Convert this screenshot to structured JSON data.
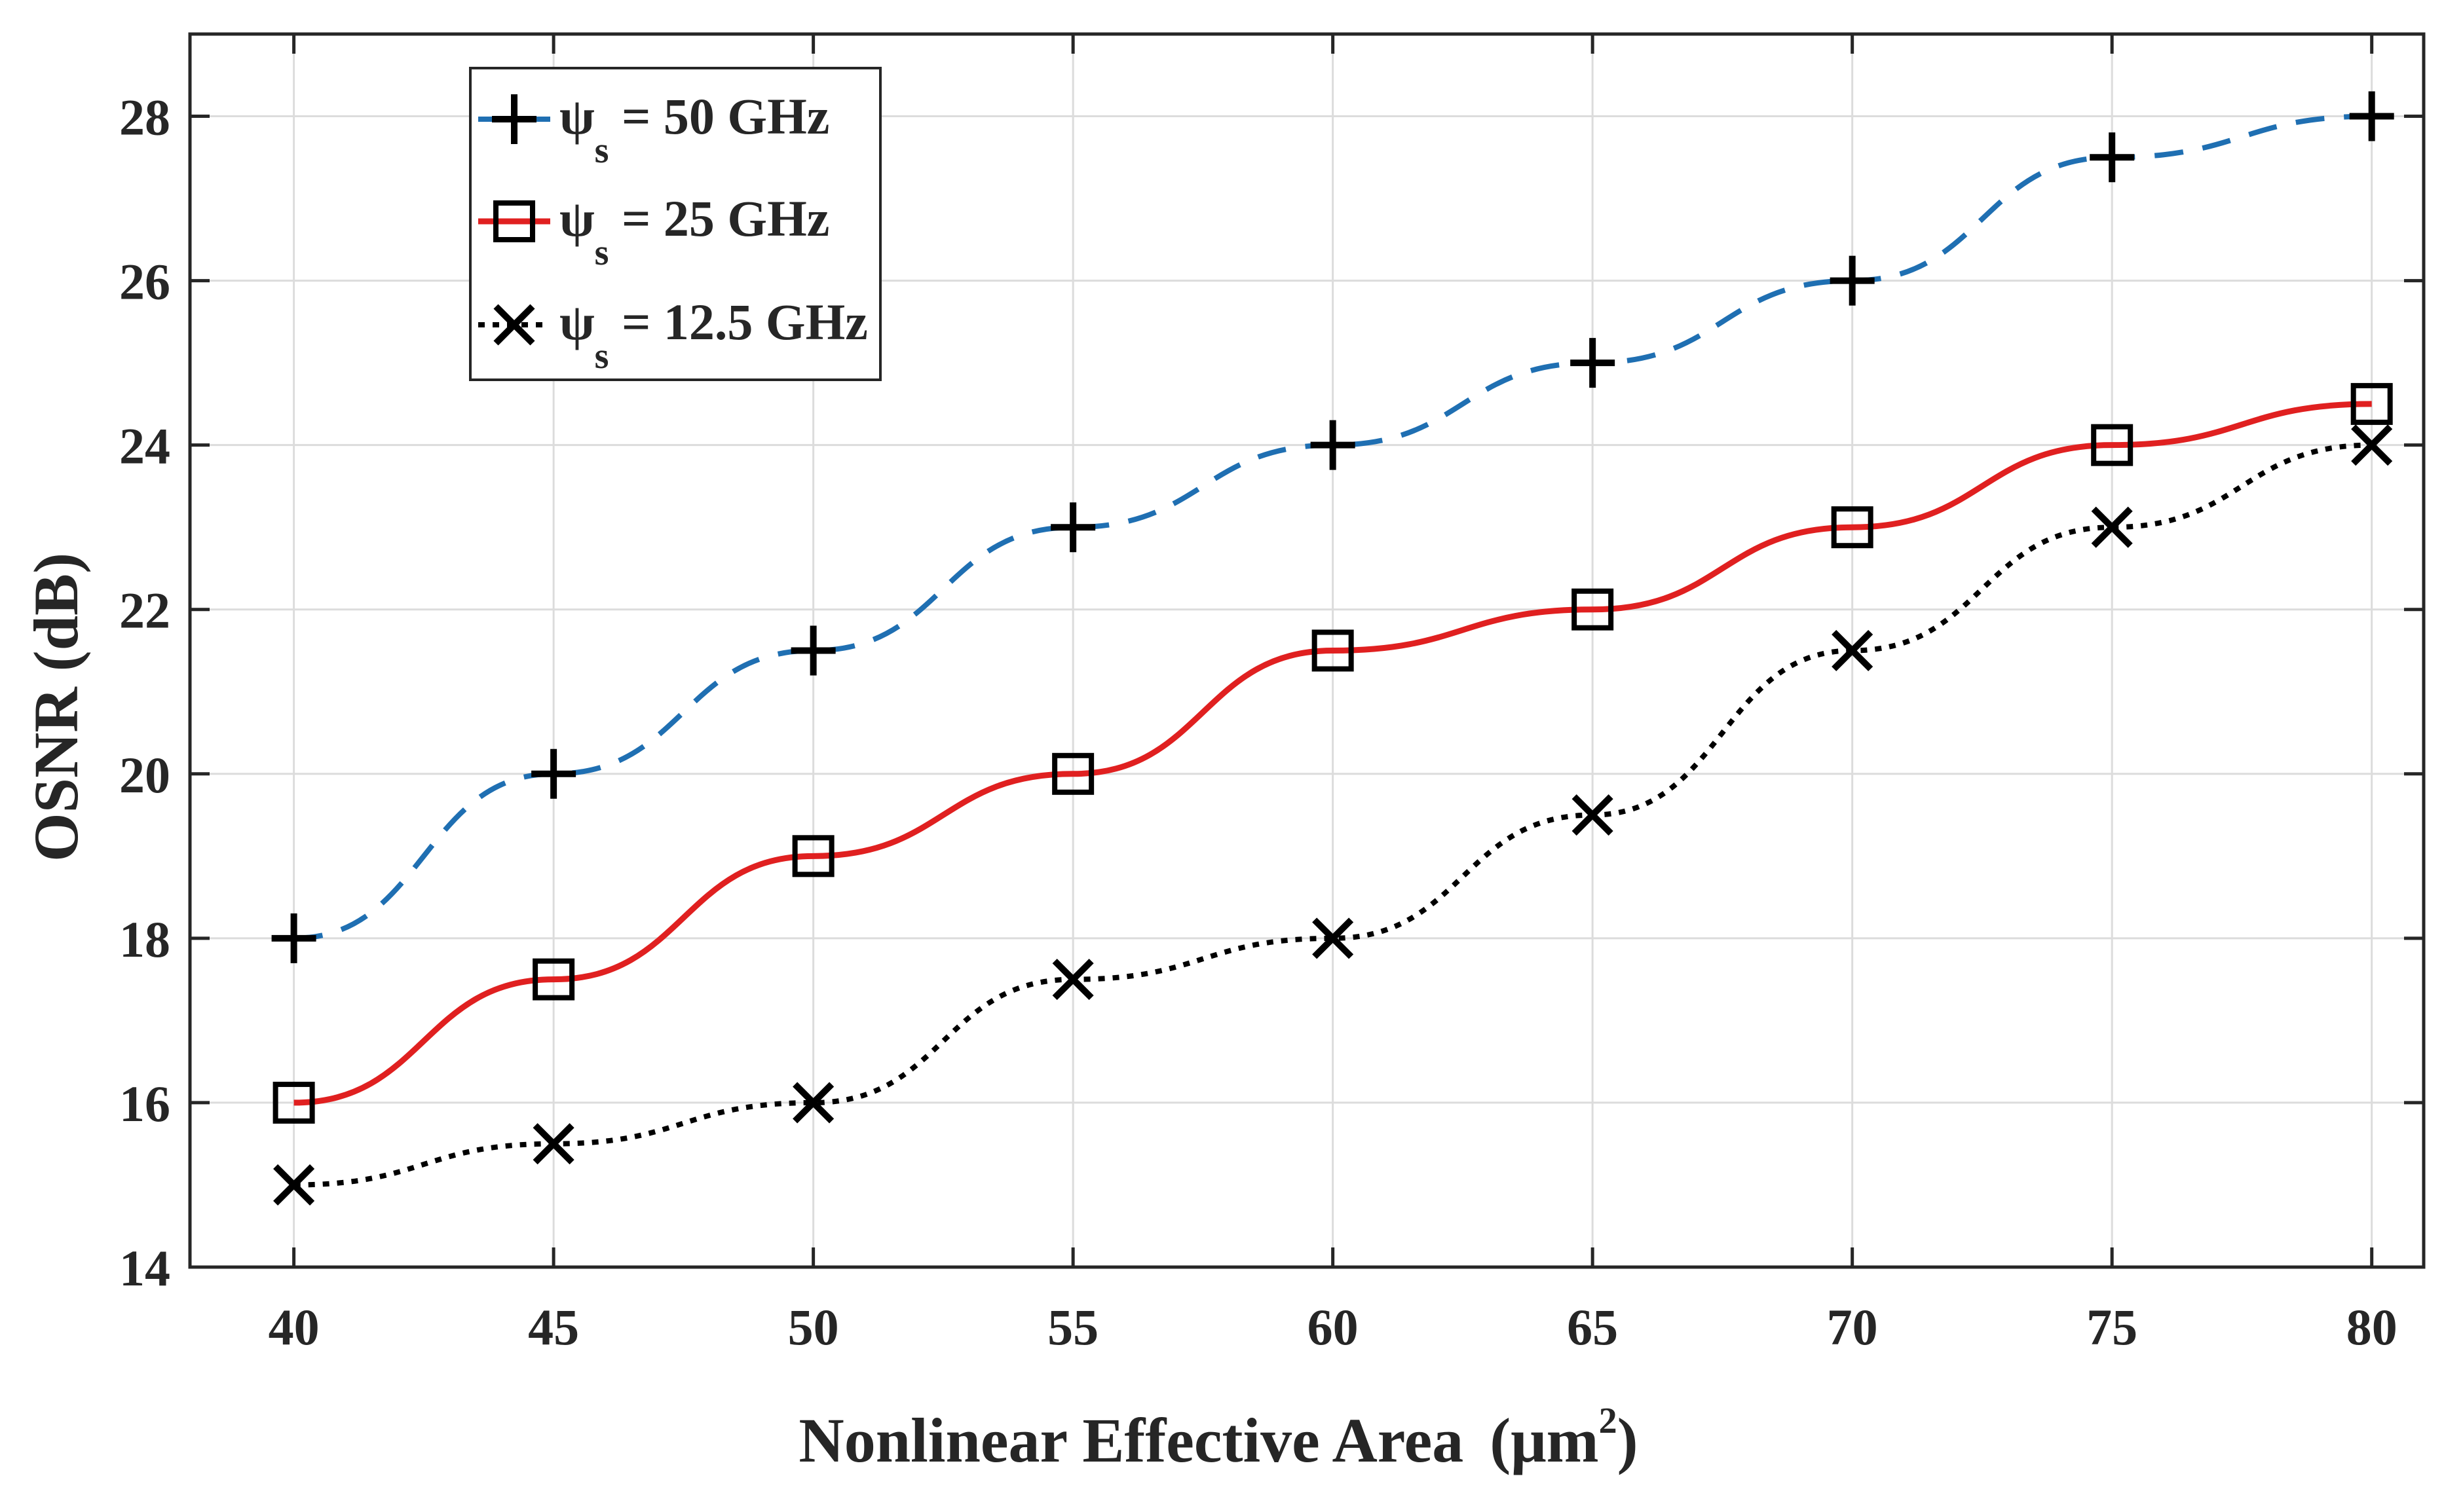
{
  "chart_data": {
    "type": "line",
    "title": "",
    "xlabel": "Nonlinear Effective Area",
    "xlabel_unit_open": "(μm",
    "xlabel_unit_sup": "2",
    "xlabel_unit_close": ")",
    "ylabel": "OSNR (dB)",
    "xlim": [
      38,
      81
    ],
    "ylim": [
      14,
      29
    ],
    "x_ticks": [
      40,
      45,
      50,
      55,
      60,
      65,
      70,
      75,
      80
    ],
    "y_ticks": [
      14,
      16,
      18,
      20,
      22,
      24,
      26,
      28
    ],
    "grid": true,
    "legend_position": "top-left",
    "x": [
      40,
      45,
      50,
      55,
      60,
      65,
      70,
      75,
      80
    ],
    "series": [
      {
        "name": "ψs = 50 GHz",
        "symbol": "ψ",
        "subscript": "s",
        "label_rest": " = 50 GHz",
        "values": [
          18,
          20,
          21.5,
          23,
          24,
          25,
          26,
          27.5,
          28
        ],
        "color": "#1f6fb2",
        "line_style": "dashed",
        "marker": "plus",
        "marker_color": "#000000"
      },
      {
        "name": "ψs = 25 GHz",
        "symbol": "ψ",
        "subscript": "s",
        "label_rest": " = 25 GHz",
        "values": [
          16,
          17.5,
          19,
          20,
          21.5,
          22,
          23,
          24,
          24.5
        ],
        "color": "#e02020",
        "line_style": "solid",
        "marker": "square",
        "marker_color": "#000000"
      },
      {
        "name": "ψs = 12.5 GHz",
        "symbol": "ψ",
        "subscript": "s",
        "label_rest": " = 12.5 GHz",
        "values": [
          15,
          15.5,
          16,
          17.5,
          18,
          19.5,
          21.5,
          23,
          24
        ],
        "color": "#000000",
        "line_style": "dotted",
        "marker": "x",
        "marker_color": "#000000"
      }
    ]
  }
}
